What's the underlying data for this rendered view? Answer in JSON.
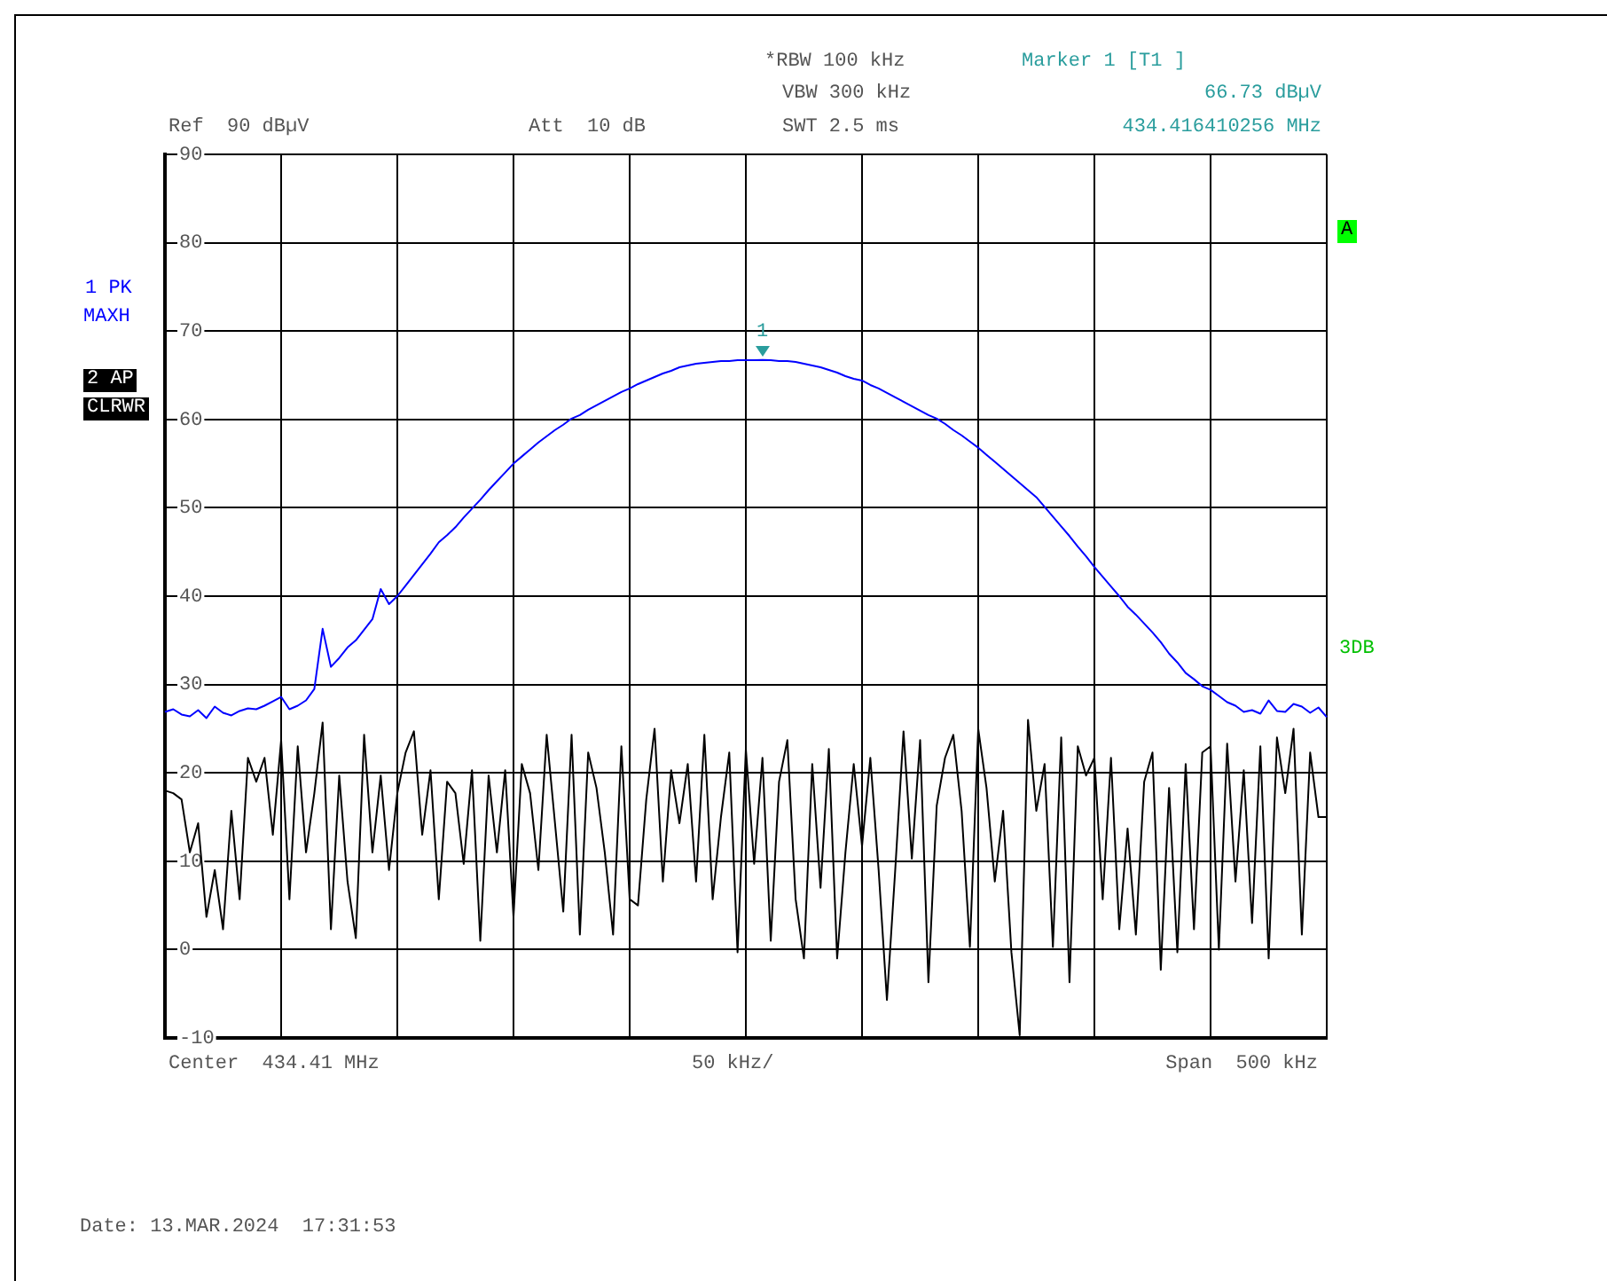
{
  "chart_data": {
    "type": "line",
    "categories": [
      null,
      null,
      null,
      null,
      null,
      null,
      null,
      null,
      null,
      null,
      null,
      null,
      null,
      null,
      null,
      null,
      null,
      null,
      null,
      null,
      null,
      null,
      null,
      null,
      null,
      null,
      null,
      null,
      null,
      null,
      null,
      null,
      null,
      null,
      null,
      null,
      null,
      null,
      null,
      null,
      null,
      null,
      null,
      null,
      null,
      null,
      null,
      null,
      null,
      null,
      null,
      null,
      null,
      null,
      null,
      null,
      null,
      null,
      null,
      null,
      null,
      null,
      null,
      null,
      null,
      null,
      null,
      null,
      null,
      null,
      null,
      null,
      null,
      null,
      null,
      null,
      null,
      null,
      null,
      null,
      null,
      null,
      null,
      null,
      null,
      null,
      null,
      null,
      null,
      null,
      null,
      null,
      null,
      null,
      null,
      null,
      null,
      null,
      null,
      null,
      null,
      null,
      null,
      null,
      null,
      null,
      null,
      null,
      null,
      null,
      null,
      null,
      null,
      null,
      null,
      null,
      null,
      null,
      null,
      null,
      null,
      null,
      null,
      null,
      null,
      null,
      null,
      null,
      null,
      null,
      null,
      null,
      null,
      null,
      null,
      null,
      null,
      null,
      null,
      null,
      null
    ],
    "ylim": [
      -10,
      90
    ],
    "yticks": [
      -10,
      0,
      10,
      20,
      30,
      40,
      50,
      60,
      70,
      80,
      90
    ],
    "tick_labels": "y",
    "grid": true,
    "legend": false,
    "marker": "none",
    "line_style": "solid",
    "series": [
      {
        "color": "#0000ff",
        "values": [
          26.9,
          27.2,
          26.6,
          26.4,
          27.1,
          26.2,
          27.5,
          26.8,
          26.5,
          27.0,
          27.3,
          27.2,
          27.6,
          28.1,
          28.6,
          27.2,
          27.6,
          28.2,
          29.5,
          36.3,
          32.0,
          33.0,
          34.2,
          35.0,
          36.2,
          37.4,
          40.8,
          39.1,
          40.0,
          41.2,
          42.4,
          43.6,
          44.8,
          46.1,
          46.9,
          47.8,
          48.9,
          49.9,
          50.9,
          52.0,
          53.0,
          54.0,
          55.0,
          55.8,
          56.6,
          57.4,
          58.1,
          58.8,
          59.4,
          60.1,
          60.5,
          61.1,
          61.6,
          62.1,
          62.6,
          63.1,
          63.5,
          64.0,
          64.4,
          64.8,
          65.2,
          65.5,
          65.9,
          66.1,
          66.3,
          66.4,
          66.5,
          66.6,
          66.6,
          66.7,
          66.7,
          66.7,
          66.73,
          66.7,
          66.6,
          66.6,
          66.5,
          66.3,
          66.1,
          65.9,
          65.6,
          65.3,
          64.9,
          64.6,
          64.4,
          63.9,
          63.5,
          63.0,
          62.5,
          62.0,
          61.5,
          61.0,
          60.5,
          60.1,
          59.5,
          58.8,
          58.2,
          57.5,
          56.8,
          56.0,
          55.2,
          54.4,
          53.6,
          52.8,
          52.0,
          51.2,
          50.1,
          49.0,
          47.9,
          46.8,
          45.6,
          44.5,
          43.3,
          42.2,
          41.1,
          40.0,
          38.8,
          37.9,
          36.9,
          35.9,
          34.8,
          33.5,
          32.5,
          31.3,
          30.6,
          29.8,
          29.4,
          28.7,
          28.0,
          27.6,
          26.9,
          27.1,
          26.7,
          28.2,
          27.0,
          26.9,
          27.8,
          27.5,
          26.8,
          27.4,
          26.3
        ]
      },
      {
        "color": "#000000",
        "values": [
          18,
          17.7,
          17,
          11,
          14.3,
          3.7,
          9,
          2.3,
          15.7,
          5.7,
          21.7,
          19,
          21.7,
          13,
          23.7,
          5.7,
          23,
          11,
          17.7,
          25.7,
          2.3,
          19.7,
          7.7,
          1.3,
          24.3,
          11,
          19.7,
          9,
          17.7,
          22.3,
          24.7,
          13,
          20.3,
          5.7,
          19,
          17.7,
          9.7,
          20.3,
          1,
          19.7,
          11,
          20.3,
          3.7,
          21,
          17.7,
          9,
          24.3,
          14.3,
          4.3,
          24.3,
          1.7,
          22.3,
          18.3,
          11,
          1.7,
          23,
          5.7,
          5,
          17,
          25,
          7.7,
          20.3,
          14.3,
          21,
          7.7,
          24.3,
          5.7,
          15,
          22.3,
          -0.3,
          22.7,
          9.7,
          21.7,
          1,
          19,
          23.7,
          5.7,
          -1,
          21,
          7,
          22.7,
          -1,
          11,
          21,
          11.7,
          21.7,
          9,
          -5.7,
          9,
          24.7,
          10.3,
          23.7,
          -3.7,
          16.3,
          21.7,
          24.3,
          15.7,
          0.3,
          25,
          18.3,
          7.7,
          15.7,
          -0.3,
          -9.7,
          26,
          15.7,
          21,
          0.3,
          24,
          -3.7,
          23,
          19.7,
          21.7,
          5.7,
          21.7,
          2.3,
          13.7,
          1.7,
          19,
          22.3,
          -2.3,
          18.3,
          -0.3,
          21,
          2.3,
          22.3,
          23,
          0,
          23.3,
          7.7,
          20.3,
          3,
          23,
          -1,
          24,
          17.7,
          25,
          1.7,
          22.3,
          15,
          15
        ]
      }
    ],
    "annotations": [
      "Ref  90 dBµV",
      "Att  10 dB",
      "*RBW 100 kHz",
      "VBW 300 kHz",
      "SWT 2.5 ms",
      "Marker 1 [T1 ]",
      "66.73 dBµV",
      "434.416410256 MHz",
      "1 PK",
      "MAXH",
      "2 AP",
      "CLRWR",
      "A",
      "3DB",
      "Center  434.41 MHz",
      "50 kHz/",
      "Span  500 kHz",
      "Date: 13.MAR.2024  17:31:53",
      {
        "text": "1",
        "y": 66.73
      }
    ]
  }
}
